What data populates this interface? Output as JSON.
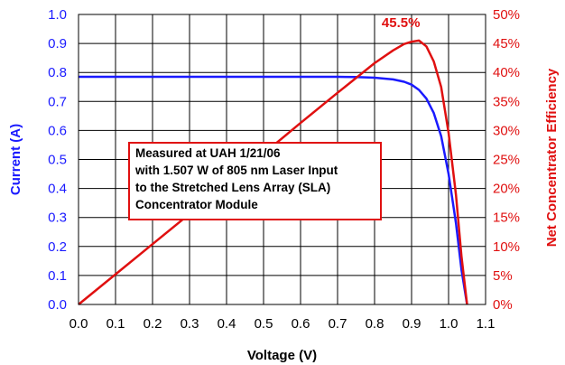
{
  "chart_data": {
    "type": "line",
    "xlabel": "Voltage (V)",
    "ylabel_left": "Current (A)",
    "ylabel_right": "Net Concentrator Efficiency",
    "xlim": [
      0.0,
      1.1
    ],
    "ylim_left": [
      0.0,
      1.0
    ],
    "ylim_right": [
      0,
      50
    ],
    "grid": true,
    "x_ticks": [
      "0.0",
      "0.1",
      "0.2",
      "0.3",
      "0.4",
      "0.5",
      "0.6",
      "0.7",
      "0.8",
      "0.9",
      "1.0",
      "1.1"
    ],
    "y_ticks_left": [
      "0.0",
      "0.1",
      "0.2",
      "0.3",
      "0.4",
      "0.5",
      "0.6",
      "0.7",
      "0.8",
      "0.9",
      "1.0"
    ],
    "y_ticks_right": [
      "0%",
      "5%",
      "10%",
      "15%",
      "20%",
      "25%",
      "30%",
      "35%",
      "40%",
      "45%",
      "50%"
    ],
    "colors": {
      "current": "#1a1aff",
      "efficiency": "#e01010"
    },
    "series": [
      {
        "axis": "left",
        "x": [
          0.0,
          0.1,
          0.2,
          0.3,
          0.4,
          0.5,
          0.6,
          0.7,
          0.75,
          0.8,
          0.85,
          0.88,
          0.9,
          0.92,
          0.94,
          0.96,
          0.98,
          1.0,
          1.02,
          1.035,
          1.05
        ],
        "y": [
          0.785,
          0.785,
          0.785,
          0.785,
          0.785,
          0.785,
          0.785,
          0.785,
          0.784,
          0.782,
          0.776,
          0.768,
          0.758,
          0.74,
          0.71,
          0.66,
          0.58,
          0.45,
          0.28,
          0.12,
          0.0
        ]
      },
      {
        "axis": "right",
        "x": [
          0.0,
          0.1,
          0.2,
          0.3,
          0.4,
          0.5,
          0.6,
          0.7,
          0.8,
          0.85,
          0.88,
          0.9,
          0.92,
          0.94,
          0.96,
          0.98,
          1.0,
          1.02,
          1.035,
          1.05
        ],
        "y": [
          0,
          5.2,
          10.4,
          15.6,
          20.8,
          26.0,
          31.3,
          36.5,
          41.6,
          43.8,
          44.9,
          45.3,
          45.5,
          44.5,
          41.9,
          37.5,
          29.6,
          18.9,
          8.3,
          0
        ]
      }
    ],
    "annotations": {
      "box_lines": [
        "Measured at UAH 1/21/06",
        "with 1.507 W of 805 nm Laser Input",
        "to the Stretched Lens Array (SLA)",
        "Concentrator Module"
      ],
      "peak_label": "45.5%",
      "peak_x": 0.92,
      "peak_y": 45.5
    }
  }
}
